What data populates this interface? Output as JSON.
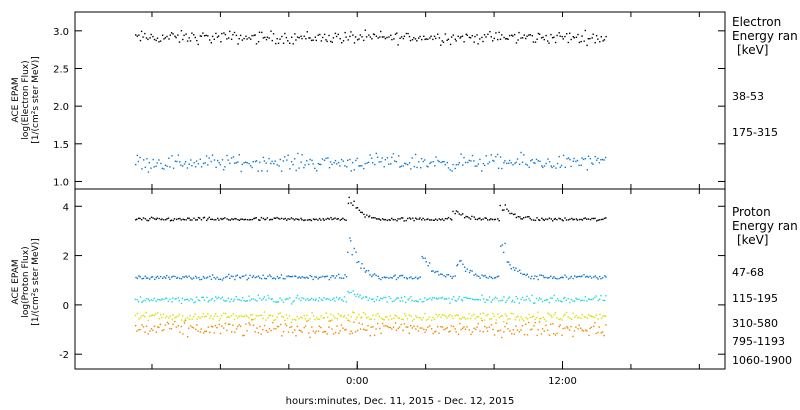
{
  "chart_data": [
    {
      "type": "scatter",
      "panel": "electron",
      "ylabel_lines": [
        "ACE EPAM",
        "log(Electron Flux)",
        "[1/(cm²s ster MeV)]"
      ],
      "ylim": [
        0.9,
        3.25
      ],
      "yticks": [
        1.0,
        1.5,
        2.0,
        2.5,
        3.0
      ],
      "ytick_labels": [
        "1.0",
        "1.5",
        "2.0",
        "2.5",
        "3.0"
      ],
      "legend_title_lines": [
        "Electron",
        "Energy ran",
        "[keV]"
      ],
      "series": [
        {
          "name": "38-53",
          "color": "#000000",
          "x_range_hours": [
            -13.0,
            14.5
          ],
          "baseline": 2.92,
          "spread": 0.07,
          "events": []
        },
        {
          "name": "175-315",
          "color": "#1177cc",
          "x_range_hours": [
            -13.0,
            14.5
          ],
          "baseline": 1.26,
          "spread": 0.09,
          "events": []
        }
      ]
    },
    {
      "type": "scatter",
      "panel": "proton",
      "ylabel_lines": [
        "ACE EPAM",
        "log(Proton Flux)",
        "[1/(cm²s ster MeV)]"
      ],
      "ylim": [
        -2.6,
        4.7
      ],
      "yticks": [
        -2,
        0,
        2,
        4
      ],
      "ytick_labels": [
        "-2",
        "0",
        "2",
        "4"
      ],
      "legend_title_lines": [
        "Proton",
        "Energy ran",
        "[keV]"
      ],
      "series": [
        {
          "name": "47-68",
          "color": "#000000",
          "x_range_hours": [
            -13.0,
            14.5
          ],
          "baseline": 3.5,
          "spread": 0.06,
          "events": [
            {
              "t": -0.3,
              "amp": 0.9
            },
            {
              "t": 5.8,
              "amp": 0.35
            },
            {
              "t": 8.6,
              "amp": 0.6
            }
          ]
        },
        {
          "name": "115-195",
          "color": "#1177cc",
          "x_range_hours": [
            -13.0,
            14.5
          ],
          "baseline": 1.15,
          "spread": 0.08,
          "events": [
            {
              "t": -0.3,
              "amp": 1.5
            },
            {
              "t": 4.0,
              "amp": 0.8
            },
            {
              "t": 6.0,
              "amp": 0.7
            },
            {
              "t": 8.6,
              "amp": 1.3
            }
          ]
        },
        {
          "name": "310-580",
          "color": "#22d8d8",
          "x_range_hours": [
            -13.0,
            14.5
          ],
          "baseline": 0.25,
          "spread": 0.12,
          "events": [
            {
              "t": -0.3,
              "amp": 0.4
            }
          ]
        },
        {
          "name": "795-1193",
          "color": "#dddd00",
          "x_range_hours": [
            -13.0,
            14.5
          ],
          "baseline": -0.45,
          "spread": 0.15,
          "events": []
        },
        {
          "name": "1060-1900",
          "color": "#ee8800",
          "x_range_hours": [
            -13.0,
            14.5
          ],
          "baseline": -0.95,
          "spread": 0.25,
          "events": []
        }
      ]
    }
  ],
  "x_axis": {
    "xlim_hours": [
      -16.5,
      21.5
    ],
    "labeled_ticks": [
      {
        "hour": 0,
        "label": "0:00"
      },
      {
        "hour": 12,
        "label": "12:00"
      }
    ],
    "minor_tick_hours": [
      -12,
      -8,
      -4,
      0,
      4,
      8,
      12,
      16,
      20
    ],
    "label": "hours:minutes, Dec. 11, 2015 - Dec. 12, 2015"
  }
}
